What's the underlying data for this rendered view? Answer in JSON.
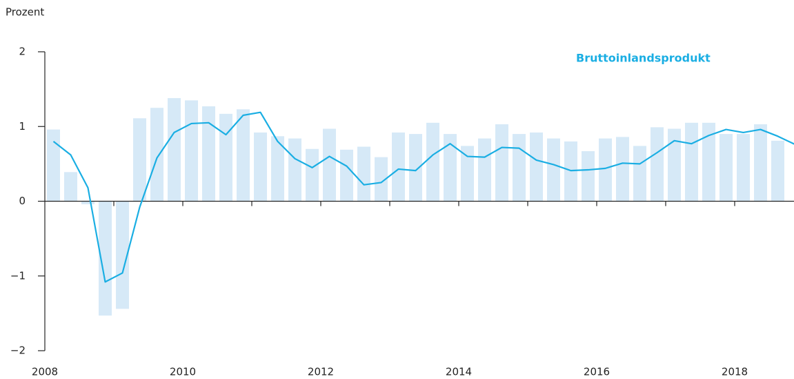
{
  "chart_data": {
    "type": "combo",
    "ylabel": "Prozent",
    "x": [
      2008.125,
      2008.375,
      2008.625,
      2008.875,
      2009.125,
      2009.375,
      2009.625,
      2009.875,
      2010.125,
      2010.375,
      2010.625,
      2010.875,
      2011.125,
      2011.375,
      2011.625,
      2011.875,
      2012.125,
      2012.375,
      2012.625,
      2012.875,
      2013.125,
      2013.375,
      2013.625,
      2013.875,
      2014.125,
      2014.375,
      2014.625,
      2014.875,
      2015.125,
      2015.375,
      2015.625,
      2015.875,
      2016.125,
      2016.375,
      2016.625,
      2016.875,
      2017.125,
      2017.375,
      2017.625,
      2017.875,
      2018.125,
      2018.375,
      2018.625,
      2018.875
    ],
    "series": [
      {
        "type": "bar",
        "color": "#d6e9f7",
        "values": [
          0.96,
          0.39,
          -0.04,
          -1.53,
          -1.44,
          1.11,
          1.25,
          1.38,
          1.35,
          1.27,
          1.17,
          1.23,
          0.92,
          0.87,
          0.84,
          0.7,
          0.97,
          0.69,
          0.73,
          0.59,
          0.92,
          0.9,
          1.05,
          0.9,
          0.74,
          0.84,
          1.03,
          0.9,
          0.92,
          0.84,
          0.8,
          0.67,
          0.84,
          0.86,
          0.74,
          0.99,
          0.97,
          1.05,
          1.05,
          0.9,
          0.9,
          1.03,
          0.81,
          null
        ]
      },
      {
        "type": "line",
        "name": "Bruttoinlandsprodukt",
        "color": "#1aaee3",
        "values": [
          0.8,
          0.62,
          0.18,
          -1.08,
          -0.96,
          -0.08,
          0.58,
          0.92,
          1.04,
          1.05,
          0.89,
          1.15,
          1.19,
          0.8,
          0.57,
          0.45,
          0.6,
          0.47,
          0.22,
          0.25,
          0.43,
          0.41,
          0.62,
          0.77,
          0.6,
          0.59,
          0.72,
          0.71,
          0.55,
          0.49,
          0.41,
          0.42,
          0.44,
          0.51,
          0.5,
          0.65,
          0.81,
          0.77,
          0.88,
          0.96,
          0.92,
          0.96,
          0.87,
          0.76
        ]
      }
    ],
    "xlim": [
      2008,
      2018.86
    ],
    "xticks": [
      2008,
      2010,
      2012,
      2014,
      2016,
      2018
    ],
    "x_tick_marks": [
      2009,
      2010,
      2011,
      2012,
      2013,
      2014,
      2015,
      2016,
      2017,
      2018
    ],
    "ylim": [
      -2,
      2
    ],
    "yticks": [
      {
        "value": -2,
        "label": "−2"
      },
      {
        "value": -1,
        "label": "−1"
      },
      0,
      1,
      2
    ],
    "legend": "top-right"
  }
}
